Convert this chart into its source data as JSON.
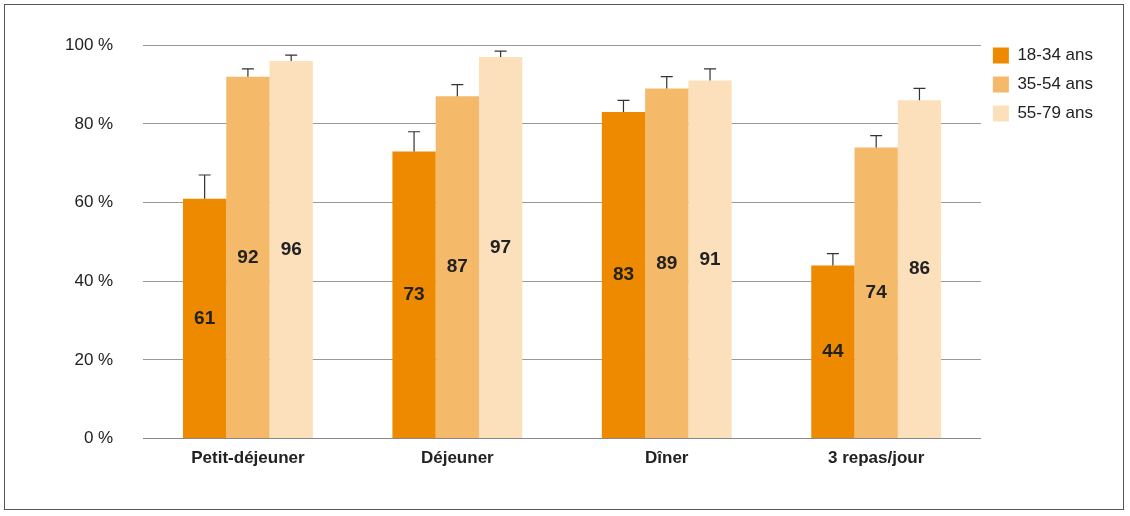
{
  "chart_data": {
    "type": "bar",
    "categories": [
      "Petit-déjeuner",
      "Déjeuner",
      "Dîner",
      "3 repas/jour"
    ],
    "series": [
      {
        "name": "18-34 ans",
        "color": "#ee8a00",
        "values": [
          61,
          73,
          83,
          44
        ],
        "errors": [
          [
            61,
            67
          ],
          [
            73,
            78
          ],
          [
            83,
            86
          ],
          [
            44,
            47
          ]
        ]
      },
      {
        "name": "35-54 ans",
        "color": "#f5b96a",
        "values": [
          92,
          87,
          89,
          74
        ],
        "errors": [
          [
            92,
            94
          ],
          [
            87,
            90
          ],
          [
            89,
            92
          ],
          [
            74,
            77
          ]
        ]
      },
      {
        "name": "55-79 ans",
        "color": "#fce0bc",
        "values": [
          96,
          97,
          91,
          86
        ],
        "errors": [
          [
            96,
            97.5
          ],
          [
            97,
            98.5
          ],
          [
            91,
            94
          ],
          [
            86,
            89
          ]
        ]
      }
    ],
    "ylim": [
      0,
      100
    ],
    "yticks": [
      {
        "value": 0,
        "label": "0 %"
      },
      {
        "value": 20,
        "label": "20 %"
      },
      {
        "value": 40,
        "label": "40 %"
      },
      {
        "value": 60,
        "label": "60 %"
      },
      {
        "value": 80,
        "label": "80 %"
      },
      {
        "value": 100,
        "label": "100 %"
      }
    ],
    "grid": "y",
    "legend": "top right",
    "data_labels": true
  }
}
